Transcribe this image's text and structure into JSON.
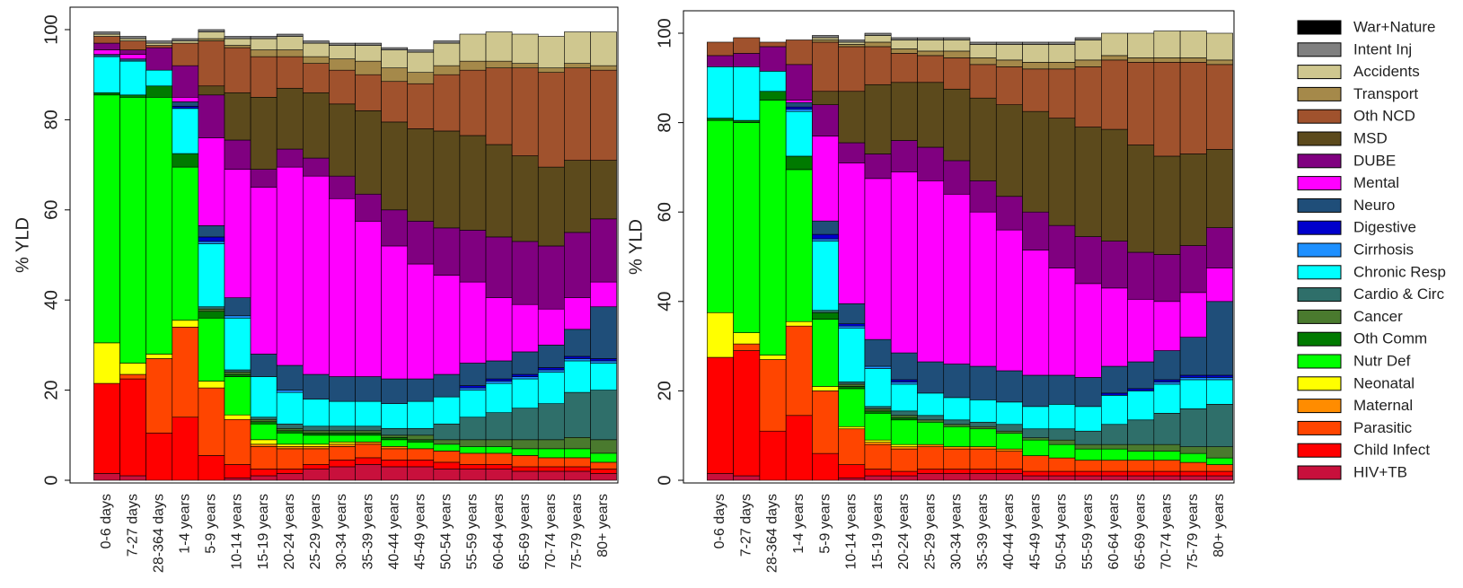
{
  "chart_data": [
    {
      "type": "bar",
      "stacked": true,
      "ylabel": "% YLD",
      "ylim": [
        0,
        100
      ],
      "yticks": [
        "0",
        "20",
        "40",
        "60",
        "80",
        "100"
      ],
      "grid": false,
      "legend": "none",
      "categories": [
        "0-6 days",
        "7-27 days",
        "28-364 days",
        "1-4 years",
        "5-9 years",
        "10-14 years",
        "15-19 years",
        "20-24 years",
        "25-29 years",
        "30-34 years",
        "35-39 years",
        "40-44 years",
        "45-49 years",
        "50-54 years",
        "55-59 years",
        "60-64 years",
        "65-69 years",
        "70-74 years",
        "75-79 years",
        "80+ years"
      ],
      "series": [
        {
          "name": "HIV+TB",
          "values": [
            1.5,
            1,
            0,
            0,
            0,
            0.5,
            1,
            1.5,
            2.5,
            3,
            3.5,
            3,
            3,
            2.5,
            2.5,
            2.5,
            2,
            2,
            2,
            1.5
          ]
        },
        {
          "name": "Child Infect",
          "values": [
            20,
            21.5,
            10.5,
            14,
            5.5,
            3,
            1.5,
            1,
            1,
            1.5,
            1.5,
            1.5,
            1.5,
            1.5,
            1,
            1,
            1,
            1,
            1,
            1
          ]
        },
        {
          "name": "Parasitic",
          "values": [
            0,
            1,
            16.5,
            20,
            15,
            10,
            5,
            4.5,
            3.5,
            3,
            3,
            2.5,
            2.5,
            2.5,
            2.5,
            2.5,
            2.5,
            2,
            2,
            1.5
          ]
        },
        {
          "name": "Maternal",
          "values": [
            0,
            0,
            0,
            0,
            0,
            0,
            0.5,
            0.5,
            0.5,
            0.5,
            0.5,
            0.5,
            0,
            0,
            0,
            0,
            0,
            0,
            0,
            0
          ]
        },
        {
          "name": "Neonatal",
          "values": [
            9,
            2.5,
            1,
            1.5,
            1.5,
            1,
            1,
            0.5,
            0.5,
            0.5,
            0,
            0,
            0,
            0,
            0,
            0,
            0,
            0,
            0,
            0
          ]
        },
        {
          "name": "Nutr Def",
          "values": [
            55,
            59,
            57,
            34,
            14,
            8.5,
            3.5,
            2.5,
            2,
            1.5,
            1.5,
            1.5,
            1.5,
            1.5,
            1.5,
            1.5,
            1.5,
            2,
            2,
            2
          ]
        },
        {
          "name": "Oth Comm",
          "values": [
            0.5,
            0.5,
            2.5,
            3,
            1.5,
            0.5,
            0.5,
            0.5,
            0.5,
            0.5,
            0.5,
            0.5,
            0.5,
            0,
            0,
            0,
            0,
            0,
            0,
            0
          ]
        },
        {
          "name": "Cancer",
          "values": [
            0,
            0,
            0,
            0,
            0.5,
            0.5,
            0.5,
            0.5,
            0.5,
            0.5,
            0.5,
            0.5,
            1,
            1,
            1.5,
            1.5,
            2,
            2,
            2.5,
            3
          ]
        },
        {
          "name": "Cardio & Circ",
          "values": [
            0,
            0,
            0,
            0,
            0.5,
            0.5,
            0.5,
            1,
            1,
            1,
            1,
            1.5,
            1.5,
            3.5,
            5,
            6,
            7,
            8,
            10,
            11
          ]
        },
        {
          "name": "Chronic Resp",
          "values": [
            8,
            7.5,
            3.5,
            10,
            14,
            11.5,
            9,
            7,
            6,
            5.5,
            5.5,
            5.5,
            6,
            6,
            6,
            6.5,
            6.5,
            7,
            7,
            6
          ]
        },
        {
          "name": "Cirrhosis",
          "values": [
            0,
            0,
            0,
            0,
            0.5,
            0.5,
            0,
            0.5,
            0,
            0,
            0,
            0,
            0,
            0,
            0.5,
            0.5,
            0.5,
            0.5,
            0.5,
            0.5
          ]
        },
        {
          "name": "Digestive",
          "values": [
            0,
            0,
            0,
            0.5,
            1,
            0,
            0,
            0,
            0,
            0,
            0,
            0,
            0,
            0,
            0.5,
            0.5,
            0.5,
            0.5,
            0.5,
            0.5
          ]
        },
        {
          "name": "Neuro",
          "values": [
            0.5,
            0.5,
            0,
            1,
            2.5,
            4,
            5,
            5.5,
            5.5,
            5.5,
            5.5,
            5.5,
            5,
            5,
            5,
            4,
            5,
            5,
            6,
            11.5
          ]
        },
        {
          "name": "Mental",
          "values": [
            1,
            1,
            0,
            1,
            19.5,
            28.5,
            37,
            44,
            44,
            39.5,
            34.5,
            29.5,
            25.5,
            22,
            18,
            14,
            10.5,
            8,
            7,
            5.5
          ]
        },
        {
          "name": "DUBE",
          "values": [
            1.5,
            1,
            5,
            7,
            9.5,
            6.5,
            4,
            4,
            4,
            5,
            6,
            8,
            9.5,
            10.5,
            11.5,
            13.5,
            14,
            14,
            14.5,
            14
          ]
        },
        {
          "name": "MSD",
          "values": [
            0,
            0,
            0,
            0,
            2,
            10.5,
            16,
            13.5,
            14.5,
            16,
            18.5,
            19.5,
            20.5,
            21.5,
            21,
            20.5,
            19,
            17.5,
            16,
            13
          ]
        },
        {
          "name": "Oth NCD",
          "values": [
            1.5,
            2,
            0.5,
            5,
            10,
            10,
            9,
            7,
            6.5,
            7.5,
            8,
            9,
            10,
            12.5,
            14.5,
            17,
            19.5,
            21,
            20.5,
            20
          ]
        },
        {
          "name": "Transport",
          "values": [
            0,
            0,
            0,
            0,
            0.5,
            0.5,
            1.5,
            1.5,
            1.5,
            2.5,
            3,
            3,
            2.5,
            2,
            2,
            1.5,
            1,
            1,
            1,
            1
          ]
        },
        {
          "name": "Accidents",
          "values": [
            0.5,
            0.5,
            0.5,
            0.5,
            1.5,
            1.5,
            2.5,
            3,
            3,
            3,
            3.5,
            4,
            4.5,
            5,
            6,
            6.5,
            6.5,
            7,
            7,
            7.5
          ]
        },
        {
          "name": "Intent Inj",
          "values": [
            0.5,
            0.5,
            0.5,
            0.5,
            0.5,
            0.5,
            0.5,
            0.5,
            0.5,
            0.5,
            0.5,
            0.5,
            0.5,
            0.5,
            0,
            0,
            0,
            0,
            0,
            0
          ]
        },
        {
          "name": "War+Nature",
          "values": [
            0,
            0,
            0,
            0,
            0,
            0,
            0,
            0,
            0,
            0,
            0,
            0,
            0,
            0,
            0,
            0,
            0,
            0,
            0,
            0
          ]
        }
      ]
    },
    {
      "type": "bar",
      "stacked": true,
      "ylabel": "% YLD",
      "ylim": [
        0,
        100
      ],
      "yticks": [
        "0",
        "20",
        "40",
        "60",
        "80",
        "100"
      ],
      "grid": false,
      "legend": "right",
      "categories": [
        "0-6 days",
        "7-27 days",
        "28-364 days",
        "1-4 years",
        "5-9 years",
        "10-14 years",
        "15-19 years",
        "20-24 years",
        "25-29 years",
        "30-34 years",
        "35-39 years",
        "40-44 years",
        "45-49 years",
        "50-54 years",
        "55-59 years",
        "60-64 years",
        "65-69 years",
        "70-74 years",
        "75-79 years",
        "80+ years"
      ],
      "series": [
        {
          "name": "HIV+TB",
          "values": [
            1.5,
            1,
            0,
            0,
            0,
            0.5,
            1,
            1,
            1.5,
            1.5,
            1.5,
            1.5,
            1,
            1,
            1,
            1,
            1,
            1,
            1,
            1
          ]
        },
        {
          "name": "Child Infect",
          "values": [
            26,
            28,
            11,
            14.5,
            6,
            3,
            1.5,
            1,
            1,
            1,
            1,
            1,
            1,
            1,
            1,
            1,
            1,
            1,
            1,
            1
          ]
        },
        {
          "name": "Parasitic",
          "values": [
            0,
            1.5,
            16,
            20,
            14,
            8,
            5.5,
            5,
            5,
            4.5,
            4.5,
            4,
            3.5,
            3,
            2.5,
            2.5,
            2.5,
            2.5,
            2,
            1.5
          ]
        },
        {
          "name": "Maternal",
          "values": [
            0,
            0,
            0,
            0,
            0,
            0,
            0.5,
            0.5,
            0.5,
            0.5,
            0.5,
            0.5,
            0,
            0,
            0,
            0,
            0,
            0,
            0,
            0
          ]
        },
        {
          "name": "Neonatal",
          "values": [
            10,
            2.5,
            1,
            1,
            1,
            0.5,
            0.5,
            0.5,
            0,
            0,
            0,
            0,
            0,
            0,
            0,
            0,
            0,
            0,
            0,
            0
          ]
        },
        {
          "name": "Nutr Def",
          "values": [
            43,
            47,
            57,
            34,
            15,
            8.5,
            6,
            5.5,
            5,
            4.5,
            4,
            3.5,
            3.5,
            3,
            2.5,
            2.5,
            2,
            2,
            2,
            1.5
          ]
        },
        {
          "name": "Oth Comm",
          "values": [
            0.5,
            0.5,
            2,
            3,
            1.5,
            0.5,
            0.5,
            0.5,
            0,
            0,
            0,
            0,
            0,
            0,
            0,
            0,
            0,
            0,
            0,
            0
          ]
        },
        {
          "name": "Cancer",
          "values": [
            0,
            0,
            0,
            0,
            0,
            0.5,
            0.5,
            0.5,
            0.5,
            0.5,
            0.5,
            0.5,
            0.5,
            1,
            1,
            1,
            1.5,
            1.5,
            1.5,
            2.5
          ]
        },
        {
          "name": "Cardio & Circ",
          "values": [
            0,
            0,
            0,
            0,
            0.5,
            0.5,
            0.5,
            1,
            1,
            1,
            1,
            1.5,
            2,
            2.5,
            3,
            4.5,
            5.5,
            7,
            8.5,
            9.5
          ]
        },
        {
          "name": "Chronic Resp",
          "values": [
            11.5,
            12,
            4.5,
            10,
            15.5,
            12,
            8.5,
            6,
            5,
            5,
            5,
            5,
            5,
            5.5,
            5.5,
            6.5,
            6.5,
            6.5,
            6.5,
            5.5
          ]
        },
        {
          "name": "Cirrhosis",
          "values": [
            0,
            0,
            0,
            0.5,
            0.5,
            0.5,
            0.5,
            0.5,
            0,
            0,
            0,
            0,
            0,
            0,
            0,
            0,
            0,
            0.5,
            0.5,
            0.5
          ]
        },
        {
          "name": "Digestive",
          "values": [
            0,
            0,
            0,
            0.5,
            1,
            0.5,
            0,
            0.5,
            0,
            0,
            0,
            0,
            0,
            0,
            0,
            0.5,
            0.5,
            0.5,
            0.5,
            0.5
          ]
        },
        {
          "name": "Neuro",
          "values": [
            0,
            0,
            0,
            1,
            3,
            4.5,
            6,
            6,
            7,
            7.5,
            7.5,
            7,
            7,
            6.5,
            6.5,
            6,
            6,
            6.5,
            8.5,
            16.5
          ]
        },
        {
          "name": "Mental",
          "values": [
            0,
            0,
            0,
            0.5,
            19,
            31.5,
            36,
            40.5,
            40.5,
            38,
            34.5,
            31.5,
            28,
            24,
            21,
            17.5,
            14,
            11,
            10,
            7.5
          ]
        },
        {
          "name": "DUBE",
          "values": [
            2.5,
            3,
            5.5,
            8,
            7,
            4.5,
            5.5,
            7,
            7.5,
            7.5,
            7,
            7.5,
            8.5,
            9.5,
            10.5,
            10.5,
            10.5,
            10.5,
            10.5,
            9
          ]
        },
        {
          "name": "MSD",
          "values": [
            0,
            0,
            0,
            0,
            3,
            11.5,
            15.5,
            13,
            14.5,
            16,
            18.5,
            20.5,
            22.5,
            24,
            24.5,
            25,
            24,
            22,
            20.5,
            17.5
          ]
        },
        {
          "name": "Oth NCD",
          "values": [
            3,
            3.5,
            1,
            5.5,
            11,
            10,
            8.5,
            6.5,
            6,
            7,
            7.5,
            8.5,
            9.5,
            11,
            13.5,
            15.5,
            18.5,
            21,
            20.5,
            19
          ]
        },
        {
          "name": "Transport",
          "values": [
            0,
            0,
            0,
            0,
            0.5,
            0.5,
            1,
            1,
            1,
            1.5,
            1.5,
            1.5,
            1.5,
            1.5,
            1.5,
            1,
            1,
            1,
            1,
            1
          ]
        },
        {
          "name": "Accidents",
          "values": [
            0,
            0,
            0,
            0,
            0.5,
            0.5,
            1.5,
            2,
            2.5,
            2.5,
            3,
            3.5,
            4,
            4,
            4.5,
            5,
            5.5,
            6,
            6,
            6
          ]
        },
        {
          "name": "Intent Inj",
          "values": [
            0,
            0,
            0,
            0,
            0.5,
            0.5,
            0.5,
            0.5,
            0.5,
            0.5,
            0.5,
            0.5,
            0.5,
            0.5,
            0.5,
            0,
            0,
            0,
            0,
            0
          ]
        },
        {
          "name": "War+Nature",
          "values": [
            0,
            0,
            0,
            0,
            0,
            0,
            0,
            0,
            0,
            0,
            0,
            0,
            0,
            0,
            0,
            0,
            0,
            0,
            0,
            0
          ]
        }
      ]
    }
  ],
  "colors": {
    "War+Nature": "#000000",
    "Intent Inj": "#808080",
    "Accidents": "#CFC78F",
    "Transport": "#A5894A",
    "Oth NCD": "#A0522D",
    "MSD": "#5C4A1C",
    "DUBE": "#800080",
    "Mental": "#FF00FF",
    "Neuro": "#1F4E79",
    "Digestive": "#0000CC",
    "Cirrhosis": "#1E90FF",
    "Chronic Resp": "#00FFFF",
    "Cardio & Circ": "#2F6F6A",
    "Cancer": "#4A7A2E",
    "Oth Comm": "#007A00",
    "Nutr Def": "#00FF00",
    "Neonatal": "#FFFF00",
    "Maternal": "#FF8C00",
    "Parasitic": "#FF4500",
    "Child Infect": "#FF0000",
    "HIV+TB": "#C8103C"
  },
  "legend_order": [
    "War+Nature",
    "Intent Inj",
    "Accidents",
    "Transport",
    "Oth NCD",
    "MSD",
    "DUBE",
    "Mental",
    "Neuro",
    "Digestive",
    "Cirrhosis",
    "Chronic Resp",
    "Cardio & Circ",
    "Cancer",
    "Oth Comm",
    "Nutr Def",
    "Neonatal",
    "Maternal",
    "Parasitic",
    "Child Infect",
    "HIV+TB"
  ]
}
